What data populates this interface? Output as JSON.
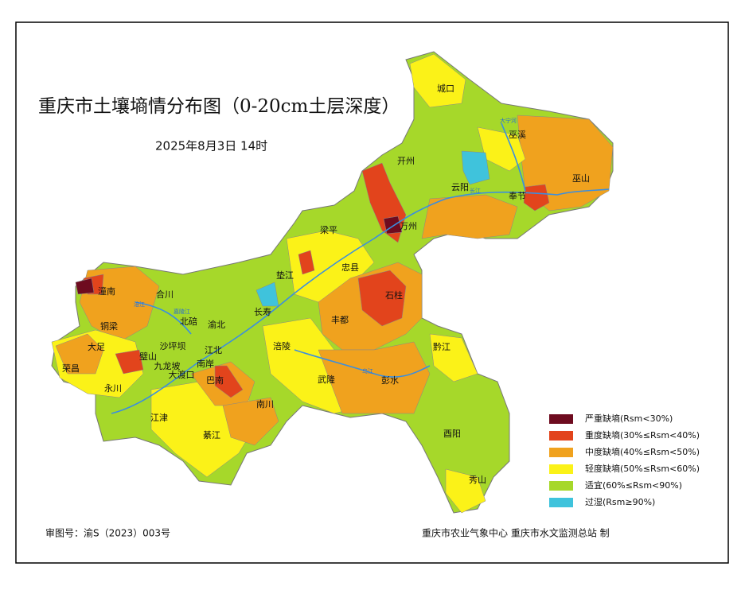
{
  "header": {
    "title": "重庆市土壤墒情分布图（0-20cm土层深度）",
    "date": "2025年8月3日 14时"
  },
  "legend": [
    {
      "label": "严重缺墒(Rsm<30%)",
      "color": "#6e0b1f"
    },
    {
      "label": "重度缺墒(30%≤Rsm<40%)",
      "color": "#e2441c"
    },
    {
      "label": "中度缺墒(40%≤Rsm<50%)",
      "color": "#f0a21e"
    },
    {
      "label": "轻度缺墒(50%≤Rsm<60%)",
      "color": "#fbf218"
    },
    {
      "label": "适宜(60%≤Rsm<90%)",
      "color": "#a6d82a"
    },
    {
      "label": "过湿(Rsm≥90%)",
      "color": "#3fc3dc"
    }
  ],
  "districts": [
    "城口",
    "巫溪",
    "开州",
    "云阳",
    "奉节",
    "巫山",
    "万州",
    "梁平",
    "垫江",
    "忠县",
    "石柱",
    "潼南",
    "合川",
    "长寿",
    "丰都",
    "铜梁",
    "北碚",
    "渝北",
    "大足",
    "涪陵",
    "荣昌",
    "永川",
    "璧山",
    "沙坪坝",
    "江北",
    "九龙坡",
    "南岸",
    "大渡口",
    "巴南",
    "武隆",
    "彭水",
    "黔江",
    "南川",
    "江津",
    "綦江",
    "酉阳",
    "秀山"
  ],
  "rivers": [
    "大宁河",
    "长江",
    "乌江",
    "涪江",
    "嘉陵江"
  ],
  "footer": {
    "approval": "审图号：渝S（2023）003号",
    "producer": "重庆市农业气象中心 重庆市水文监测总站 制"
  }
}
